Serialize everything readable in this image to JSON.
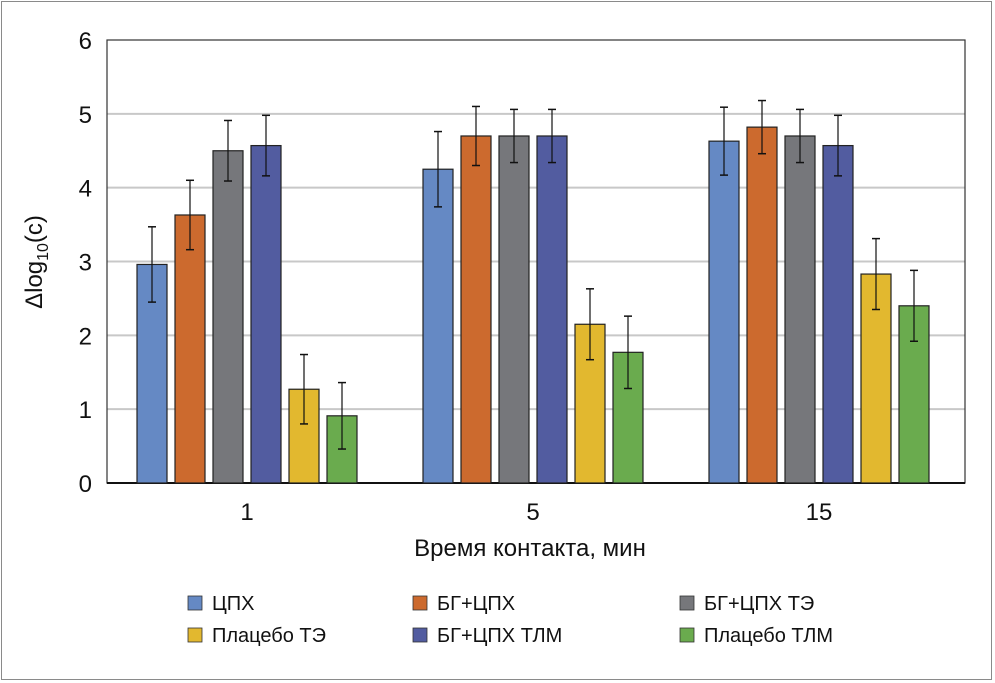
{
  "chart_data": {
    "type": "bar",
    "title": "",
    "xlabel": "Время контакта, мин",
    "ylabel_main": "Δlog",
    "ylabel_sub": "10",
    "ylabel_tail": "(c)",
    "ylim": [
      0,
      6
    ],
    "yticks": [
      "0",
      "1",
      "2",
      "3",
      "4",
      "5",
      "6"
    ],
    "grid": true,
    "legend_position": "bottom",
    "categories": [
      "1",
      "5",
      "15"
    ],
    "series": [
      {
        "name": "ЦПХ",
        "color": "#6589c4",
        "values": [
          2.96,
          4.25,
          4.63
        ],
        "errors": [
          0.51,
          0.51,
          0.46
        ]
      },
      {
        "name": "БГ+ЦПХ",
        "color": "#cc6a2e",
        "values": [
          3.63,
          4.7,
          4.82
        ],
        "errors": [
          0.47,
          0.4,
          0.36
        ]
      },
      {
        "name": "БГ+ЦПХ ТЭ",
        "color": "#76777b",
        "values": [
          4.5,
          4.7,
          4.7
        ],
        "errors": [
          0.41,
          0.36,
          0.36
        ]
      },
      {
        "name": "БГ+ЦПХ ТЛМ",
        "color": "#525ca0",
        "values": [
          4.57,
          4.7,
          4.57
        ],
        "errors": [
          0.41,
          0.36,
          0.41
        ]
      },
      {
        "name": "Плацебо ТЭ",
        "color": "#e2b82f",
        "values": [
          1.27,
          2.15,
          2.83
        ],
        "errors": [
          0.47,
          0.48,
          0.48
        ]
      },
      {
        "name": "Плацебо ТЛМ",
        "color": "#6aab4e",
        "values": [
          0.91,
          1.77,
          2.4
        ],
        "errors": [
          0.45,
          0.49,
          0.48
        ]
      }
    ],
    "legend_order": [
      0,
      1,
      2,
      4,
      3,
      5
    ]
  }
}
